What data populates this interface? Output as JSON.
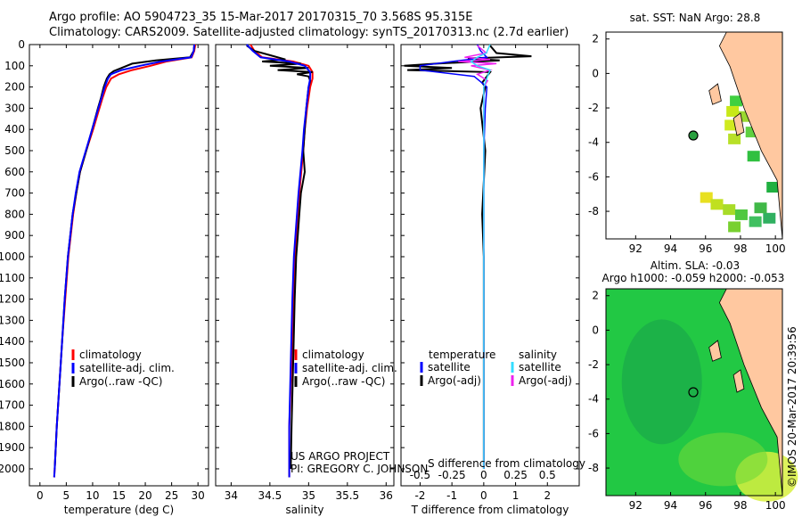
{
  "header": {
    "line1": "Argo profile: AO 5904723_35 15-Mar-2017 20170315_70 3.568S 95.315E",
    "line2": "Climatology: CARS2009. Satellite-adjusted climatology: synTS_20170313.nc (2.7d earlier)"
  },
  "colors": {
    "climatology": "#ff0000",
    "satellite": "#0000ff",
    "argo": "#000000",
    "sal_satellite": "#33ddff",
    "sal_argo": "#ee22ee",
    "land": "#ffc8a0"
  },
  "credit": {
    "line1": "US ARGO PROJECT",
    "line2": "PI: GREGORY C. JOHNSON"
  },
  "copyright": "©IMOS 20-Mar-2017 20:39:56",
  "chart_data": [
    {
      "type": "line",
      "title": "",
      "xlabel": "temperature (deg C)",
      "ylabel": "",
      "xlim": [
        -2,
        32
      ],
      "ylim": [
        2080,
        0
      ],
      "xticks": [
        "0",
        "5",
        "10",
        "15",
        "20",
        "25",
        "30"
      ],
      "yticks": [
        "0",
        "100",
        "200",
        "300",
        "400",
        "500",
        "600",
        "700",
        "800",
        "900",
        "1000",
        "1100",
        "1200",
        "1300",
        "1400",
        "1500",
        "1600",
        "1700",
        "1800",
        "1900",
        "2000"
      ],
      "legend": [
        "climatology",
        "satellite-adj. clim.",
        "Argo(..raw -QC)"
      ],
      "series": [
        {
          "name": "climatology",
          "depth": [
            0,
            30,
            60,
            80,
            100,
            120,
            140,
            160,
            200,
            250,
            300,
            400,
            500,
            600,
            700,
            800,
            1000,
            1200,
            1400,
            1600,
            1800,
            2000,
            2040
          ],
          "values": [
            29.5,
            29.3,
            28.8,
            24,
            21,
            17.5,
            15,
            13.5,
            12.6,
            11.9,
            11.3,
            10.1,
            8.8,
            7.6,
            6.9,
            6.3,
            5.4,
            4.8,
            4.2,
            3.7,
            3.2,
            2.8,
            2.7
          ]
        },
        {
          "name": "satellite-adj. clim.",
          "depth": [
            0,
            30,
            60,
            80,
            100,
            120,
            140,
            160,
            200,
            250,
            300,
            400,
            500,
            600,
            700,
            800,
            1000,
            1200,
            1400,
            1600,
            1800,
            2000,
            2040
          ],
          "values": [
            29.3,
            29.2,
            28.7,
            23,
            19,
            15.5,
            13.5,
            12.9,
            12.3,
            11.7,
            11.1,
            9.9,
            8.7,
            7.5,
            6.8,
            6.2,
            5.3,
            4.7,
            4.2,
            3.7,
            3.2,
            2.8,
            2.7
          ]
        },
        {
          "name": "Argo",
          "depth": [
            5,
            30,
            60,
            75,
            90,
            110,
            125,
            140,
            160,
            180,
            200,
            250,
            300,
            400,
            500,
            600,
            700,
            800,
            1000,
            1200,
            1400,
            1600,
            1800,
            2000
          ],
          "values": [
            29.3,
            29.2,
            28.5,
            22,
            17.5,
            15.5,
            14,
            13.2,
            12.7,
            12.4,
            12.1,
            11.6,
            11,
            9.9,
            8.8,
            7.6,
            6.9,
            6.2,
            5.3,
            4.7,
            4.2,
            3.7,
            3.2,
            2.8
          ]
        }
      ]
    },
    {
      "type": "line",
      "title": "",
      "xlabel": "salinity",
      "ylabel": "",
      "xlim": [
        33.8,
        36.1
      ],
      "ylim": [
        2080,
        0
      ],
      "xticks": [
        "34",
        "34.5",
        "35",
        "35.5",
        "36"
      ],
      "legend": [
        "climatology",
        "satellite-adj. clim.",
        "Argo(..raw -QC)"
      ],
      "series": [
        {
          "name": "climatology",
          "depth": [
            0,
            30,
            60,
            80,
            100,
            130,
            160,
            200,
            300,
            400,
            500,
            700,
            1000,
            1200,
            1500,
            1800,
            2040
          ],
          "values": [
            34.25,
            34.3,
            34.4,
            34.8,
            35.0,
            35.05,
            35.05,
            35.02,
            34.98,
            34.95,
            34.93,
            34.88,
            34.82,
            34.8,
            34.78,
            34.75,
            34.75
          ]
        },
        {
          "name": "satellite-adj. clim.",
          "depth": [
            0,
            30,
            60,
            80,
            100,
            130,
            160,
            200,
            300,
            400,
            500,
            700,
            1000,
            1200,
            1500,
            1800,
            2040
          ],
          "values": [
            34.2,
            34.28,
            34.38,
            34.75,
            34.95,
            35.02,
            35.02,
            35.0,
            34.97,
            34.94,
            34.92,
            34.87,
            34.81,
            34.79,
            34.77,
            34.75,
            34.75
          ]
        },
        {
          "name": "Argo",
          "depth": [
            5,
            30,
            50,
            70,
            80,
            90,
            100,
            110,
            120,
            130,
            140,
            150,
            170,
            200,
            300,
            400,
            500,
            600,
            700,
            800,
            900,
            1000,
            1200,
            1500,
            1800,
            2000
          ],
          "values": [
            34.2,
            34.3,
            34.5,
            34.7,
            34.4,
            34.9,
            34.5,
            35.0,
            34.6,
            35.05,
            34.85,
            35.0,
            35.02,
            35.0,
            34.97,
            34.95,
            34.93,
            34.95,
            34.9,
            34.88,
            34.86,
            34.84,
            34.82,
            34.8,
            34.78,
            34.77
          ]
        }
      ]
    },
    {
      "type": "line",
      "title": "",
      "xlabel": "T difference from climatology",
      "xlabel_top": "S difference from climatology",
      "xlim": [
        -2.6,
        3.0
      ],
      "ylim": [
        2080,
        0
      ],
      "xticks": [
        "-2",
        "-1",
        "0",
        "1",
        "2"
      ],
      "xticks_top": [
        "-0.5",
        "-0.25",
        "0",
        "0.25",
        "0.5"
      ],
      "legend_titles": [
        "temperature",
        "salinity"
      ],
      "legend": [
        "satellite",
        "Argo(-adj)",
        "satellite",
        "Argo(-adj)"
      ],
      "series": [
        {
          "name": "T satellite",
          "depth": [
            0,
            30,
            60,
            80,
            100,
            120,
            150,
            200,
            300,
            500,
            1000,
            2000
          ],
          "values": [
            -0.2,
            -0.1,
            0.1,
            -1.0,
            -2.0,
            -2.0,
            -0.3,
            0.1,
            0.05,
            0.0,
            0.0,
            0.0
          ]
        },
        {
          "name": "T Argo(-adj)",
          "depth": [
            5,
            40,
            55,
            65,
            75,
            90,
            100,
            110,
            120,
            130,
            150,
            180,
            200,
            300,
            500,
            800,
            1000,
            1500,
            2000
          ],
          "values": [
            0.2,
            0.4,
            1.5,
            -0.5,
            0.5,
            -1.5,
            -2.5,
            -1.0,
            -2.4,
            0.2,
            0.1,
            -0.05,
            0.05,
            -0.1,
            0.05,
            -0.05,
            0.0,
            0.0,
            0.0
          ]
        },
        {
          "name": "S satellite",
          "depth": [
            0,
            40,
            60,
            80,
            100,
            120,
            150,
            200,
            300,
            500,
            1000,
            2000
          ],
          "values": [
            0.05,
            0.02,
            -0.05,
            -0.1,
            -0.05,
            0.05,
            0.03,
            0.0,
            0.0,
            0.0,
            0.0,
            0.0
          ]
        },
        {
          "name": "S Argo(-adj)",
          "depth": [
            5,
            40,
            60,
            70,
            80,
            90,
            100,
            120,
            140,
            170,
            200,
            400,
            800,
            1500,
            2000
          ],
          "values": [
            -0.05,
            0.02,
            -0.15,
            0.05,
            -0.2,
            0.1,
            -0.1,
            0.05,
            -0.05,
            0.03,
            0.0,
            0.0,
            0.0,
            0.0,
            0.0
          ]
        }
      ]
    },
    {
      "type": "heatmap",
      "title": "sat. SST: NaN Argo: 28.8",
      "xticks": [
        "92",
        "94",
        "96",
        "98",
        "100"
      ],
      "yticks": [
        "2",
        "0",
        "-2",
        "-4",
        "-6",
        "-8"
      ],
      "marker": {
        "lon": 95.3,
        "lat": -3.6
      }
    },
    {
      "type": "heatmap",
      "title": "Altim. SLA: -0.03",
      "subtitle": "Argo h1000: -0.059 h2000: -0.053",
      "xticks": [
        "92",
        "94",
        "96",
        "98",
        "100"
      ],
      "yticks": [
        "2",
        "0",
        "-2",
        "-4",
        "-6",
        "-8"
      ],
      "marker": {
        "lon": 95.3,
        "lat": -3.6
      }
    }
  ]
}
